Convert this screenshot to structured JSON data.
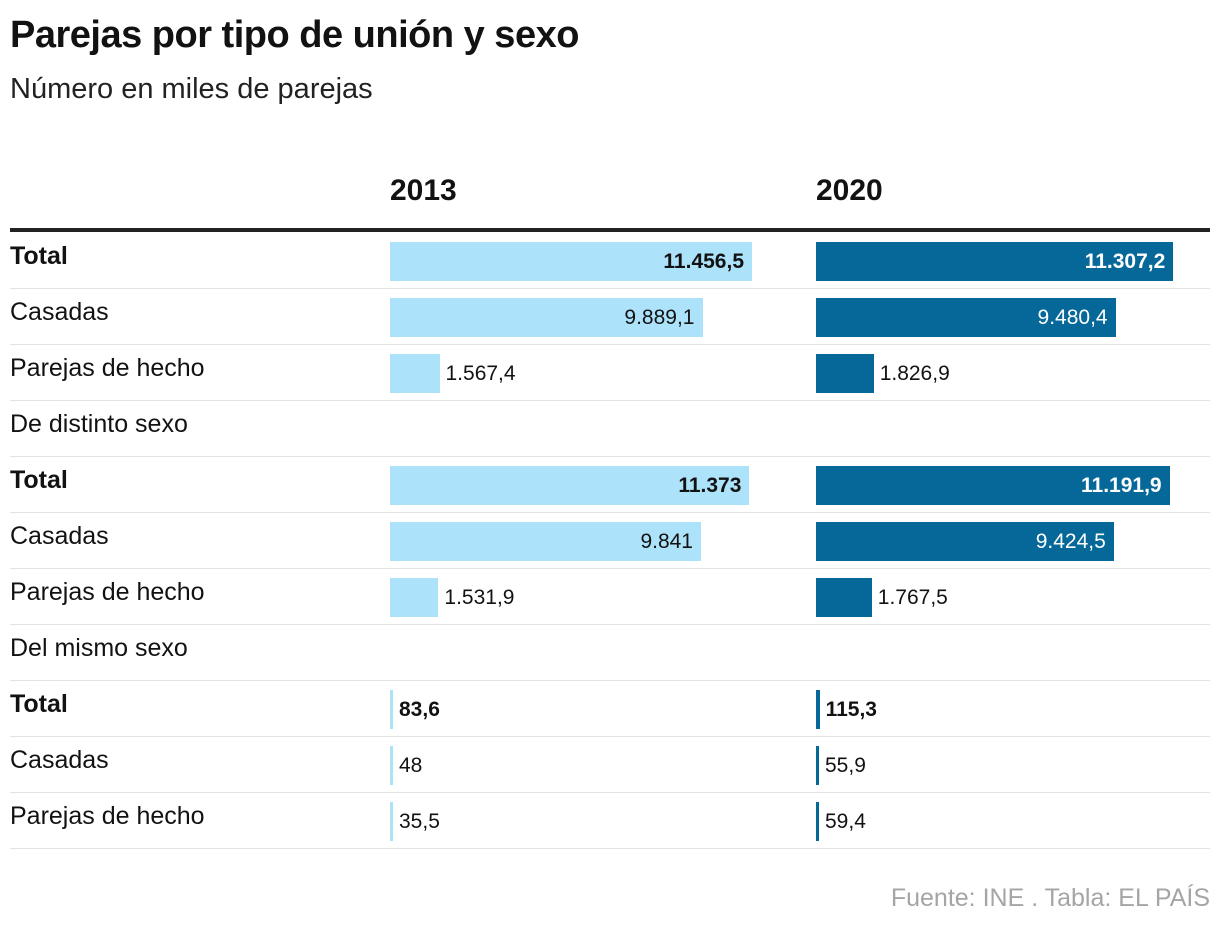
{
  "title": "Parejas por tipo de unión y sexo",
  "subtitle": "Número en miles de parejas",
  "source": "Fuente: INE . Tabla: EL PAÍS",
  "colors": {
    "bar_2013": "#ade2fb",
    "bar_2020": "#056898",
    "text_on_dark": "#ffffff",
    "text": "#121212"
  },
  "chart_data": {
    "type": "table",
    "title": "Parejas por tipo de unión y sexo",
    "subtitle": "Número en miles de parejas",
    "columns": [
      "2013",
      "2020"
    ],
    "rows": [
      {
        "label": "Total",
        "kind": "total",
        "v2013": 11456.5,
        "v2020": 11307.2,
        "l2013": "11.456,5",
        "l2020": "11.307,2"
      },
      {
        "label": "Casadas",
        "kind": "item",
        "v2013": 9889.1,
        "v2020": 9480.4,
        "l2013": "9.889,1",
        "l2020": "9.480,4"
      },
      {
        "label": "Parejas de hecho",
        "kind": "item",
        "v2013": 1567.4,
        "v2020": 1826.9,
        "l2013": "1.567,4",
        "l2020": "1.826,9"
      },
      {
        "label": "De distinto sexo",
        "kind": "section"
      },
      {
        "label": "Total",
        "kind": "total",
        "v2013": 11373,
        "v2020": 11191.9,
        "l2013": "11.373",
        "l2020": "11.191,9"
      },
      {
        "label": "Casadas",
        "kind": "item",
        "v2013": 9841,
        "v2020": 9424.5,
        "l2013": "9.841",
        "l2020": "9.424,5"
      },
      {
        "label": "Parejas de hecho",
        "kind": "item",
        "v2013": 1531.9,
        "v2020": 1767.5,
        "l2013": "1.531,9",
        "l2020": "1.767,5"
      },
      {
        "label": "Del mismo sexo",
        "kind": "section"
      },
      {
        "label": "Total",
        "kind": "total",
        "v2013": 83.6,
        "v2020": 115.3,
        "l2013": "83,6",
        "l2020": "115,3"
      },
      {
        "label": "Casadas",
        "kind": "item",
        "v2013": 48,
        "v2020": 55.9,
        "l2013": "48",
        "l2020": "55,9"
      },
      {
        "label": "Parejas de hecho",
        "kind": "item",
        "v2013": 35.5,
        "v2020": 59.4,
        "l2013": "35,5",
        "l2020": "59,4"
      }
    ]
  }
}
